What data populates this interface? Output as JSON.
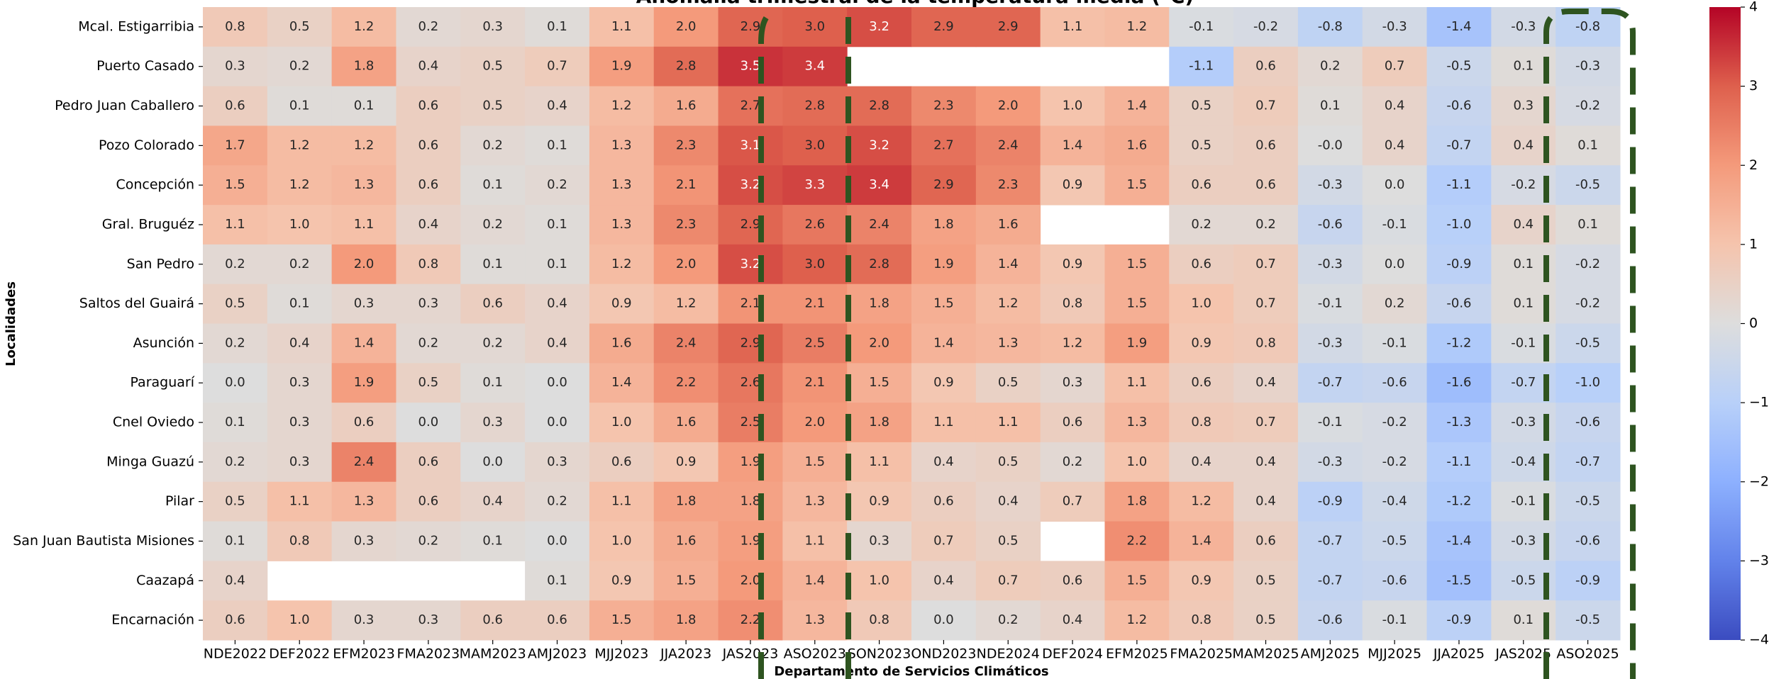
{
  "chart_data": {
    "type": "heatmap",
    "title": "Anomalía trimestral de la temperatura media (°C)",
    "xlabel": "Departamento de Servicios Climáticos",
    "ylabel": "Localidades",
    "colormap": "coolwarm",
    "clim": [
      -4,
      4
    ],
    "cbar_ticks": [
      {
        "value": -4,
        "label": "−4"
      },
      {
        "value": -3,
        "label": "−3"
      },
      {
        "value": -2,
        "label": "−2"
      },
      {
        "value": -1,
        "label": "−1"
      },
      0,
      1,
      2,
      3,
      4
    ],
    "columns": [
      "NDE2022",
      "DEF2022",
      "EFM2023",
      "FMA2023",
      "MAM2023",
      "AMJ2023",
      "MJJ2023",
      "JJA2023",
      "JAS2023",
      "ASO2023",
      "SON2023",
      "OND2023",
      "NDE2024",
      "DEF2024",
      "EFM2025",
      "FMA2025",
      "MAM2025",
      "AMJ2025",
      "MJJ2025",
      "JJA2025",
      "JAS2025",
      "ASO2025"
    ],
    "rows": [
      "Mcal. Estigarribia",
      "Puerto Casado",
      "Pedro Juan Caballero",
      "Pozo Colorado",
      "Concepción",
      "Gral. Bruguéz",
      "San Pedro",
      "Saltos del Guairá",
      "Asunción",
      "Paraguarí",
      "Cnel Oviedo",
      "Minga Guazú",
      "Pilar",
      "San Juan Bautista Misiones",
      "Caazapá",
      "Encarnación"
    ],
    "values": [
      [
        0.8,
        0.5,
        1.2,
        0.2,
        0.3,
        0.1,
        1.1,
        2.0,
        2.9,
        3.0,
        3.2,
        2.9,
        2.9,
        1.1,
        1.2,
        -0.1,
        -0.2,
        -0.8,
        -0.3,
        -1.4,
        -0.3,
        -0.8
      ],
      [
        0.3,
        0.2,
        1.8,
        0.4,
        0.5,
        0.7,
        1.9,
        2.8,
        3.5,
        3.4,
        null,
        null,
        null,
        null,
        null,
        -1.1,
        0.6,
        0.2,
        0.7,
        -0.5,
        0.1,
        -0.3
      ],
      [
        0.6,
        0.1,
        0.1,
        0.6,
        0.5,
        0.4,
        1.2,
        1.6,
        2.7,
        2.8,
        2.8,
        2.3,
        2.0,
        1.0,
        1.4,
        0.5,
        0.7,
        0.1,
        0.4,
        -0.6,
        0.3,
        -0.2
      ],
      [
        1.7,
        1.2,
        1.2,
        0.6,
        0.2,
        0.1,
        1.3,
        2.3,
        3.1,
        3.0,
        3.2,
        2.7,
        2.4,
        1.4,
        1.6,
        0.5,
        0.6,
        -0.0,
        0.4,
        -0.7,
        0.4,
        0.1
      ],
      [
        1.5,
        1.2,
        1.3,
        0.6,
        0.1,
        0.2,
        1.3,
        2.1,
        3.2,
        3.3,
        3.4,
        2.9,
        2.3,
        0.9,
        1.5,
        0.6,
        0.6,
        -0.3,
        0.0,
        -1.1,
        -0.2,
        -0.5
      ],
      [
        1.1,
        1.0,
        1.1,
        0.4,
        0.2,
        0.1,
        1.3,
        2.3,
        2.9,
        2.6,
        2.4,
        1.8,
        1.6,
        null,
        null,
        0.2,
        0.2,
        -0.6,
        -0.1,
        -1.0,
        0.4,
        0.1
      ],
      [
        0.2,
        0.2,
        2.0,
        0.8,
        0.1,
        0.1,
        1.2,
        2.0,
        3.2,
        3.0,
        2.8,
        1.9,
        1.4,
        0.9,
        1.5,
        0.6,
        0.7,
        -0.3,
        0.0,
        -0.9,
        0.1,
        -0.2
      ],
      [
        0.5,
        0.1,
        0.3,
        0.3,
        0.6,
        0.4,
        0.9,
        1.2,
        2.1,
        2.1,
        1.8,
        1.5,
        1.2,
        0.8,
        1.5,
        1.0,
        0.7,
        -0.1,
        0.2,
        -0.6,
        0.1,
        -0.2
      ],
      [
        0.2,
        0.4,
        1.4,
        0.2,
        0.2,
        0.4,
        1.6,
        2.4,
        2.9,
        2.5,
        2.0,
        1.4,
        1.3,
        1.2,
        1.9,
        0.9,
        0.8,
        -0.3,
        -0.1,
        -1.2,
        -0.1,
        -0.5
      ],
      [
        0.0,
        0.3,
        1.9,
        0.5,
        0.1,
        0.0,
        1.4,
        2.2,
        2.6,
        2.1,
        1.5,
        0.9,
        0.5,
        0.3,
        1.1,
        0.6,
        0.4,
        -0.7,
        -0.6,
        -1.6,
        -0.7,
        -1.0
      ],
      [
        0.1,
        0.3,
        0.6,
        0.0,
        0.3,
        0.0,
        1.0,
        1.6,
        2.5,
        2.0,
        1.8,
        1.1,
        1.1,
        0.6,
        1.3,
        0.8,
        0.7,
        -0.1,
        -0.2,
        -1.3,
        -0.3,
        -0.6
      ],
      [
        0.2,
        0.3,
        2.4,
        0.6,
        0.0,
        0.3,
        0.6,
        0.9,
        1.9,
        1.5,
        1.1,
        0.4,
        0.5,
        0.2,
        1.0,
        0.4,
        0.4,
        -0.3,
        -0.2,
        -1.1,
        -0.4,
        -0.7
      ],
      [
        0.5,
        1.1,
        1.3,
        0.6,
        0.4,
        0.2,
        1.1,
        1.8,
        1.8,
        1.3,
        0.9,
        0.6,
        0.4,
        0.7,
        1.8,
        1.2,
        0.4,
        -0.9,
        -0.4,
        -1.2,
        -0.1,
        -0.5
      ],
      [
        0.1,
        0.8,
        0.3,
        0.2,
        0.1,
        0.0,
        1.0,
        1.6,
        1.9,
        1.1,
        0.3,
        0.7,
        0.5,
        null,
        2.2,
        1.4,
        0.6,
        -0.7,
        -0.5,
        -1.4,
        -0.3,
        -0.6
      ],
      [
        0.4,
        null,
        null,
        null,
        null,
        0.1,
        0.9,
        1.5,
        2.0,
        1.4,
        1.0,
        0.4,
        0.7,
        0.6,
        1.5,
        0.9,
        0.5,
        -0.7,
        -0.6,
        -1.5,
        -0.5,
        -0.9
      ],
      [
        0.6,
        1.0,
        0.3,
        0.3,
        0.6,
        0.6,
        1.5,
        1.8,
        2.2,
        1.3,
        0.8,
        0.0,
        0.2,
        0.4,
        1.2,
        0.8,
        0.5,
        -0.6,
        -0.1,
        -0.9,
        0.1,
        -0.5
      ]
    ],
    "value_labels": [
      [
        "0.8",
        "0.5",
        "1.2",
        "0.2",
        "0.3",
        "0.1",
        "1.1",
        "2.0",
        "2.9",
        "3.0",
        "3.2",
        "2.9",
        "2.9",
        "1.1",
        "1.2",
        "-0.1",
        "-0.2",
        "-0.8",
        "-0.3",
        "-1.4",
        "-0.3",
        "-0.8"
      ],
      [
        "0.3",
        "0.2",
        "1.8",
        "0.4",
        "0.5",
        "0.7",
        "1.9",
        "2.8",
        "3.5",
        "3.4",
        null,
        null,
        null,
        null,
        null,
        "-1.1",
        "0.6",
        "0.2",
        "0.7",
        "-0.5",
        "0.1",
        "-0.3"
      ],
      [
        "0.6",
        "0.1",
        "0.1",
        "0.6",
        "0.5",
        "0.4",
        "1.2",
        "1.6",
        "2.7",
        "2.8",
        "2.8",
        "2.3",
        "2.0",
        "1.0",
        "1.4",
        "0.5",
        "0.7",
        "0.1",
        "0.4",
        "-0.6",
        "0.3",
        "-0.2"
      ],
      [
        "1.7",
        "1.2",
        "1.2",
        "0.6",
        "0.2",
        "0.1",
        "1.3",
        "2.3",
        "3.1",
        "3.0",
        "3.2",
        "2.7",
        "2.4",
        "1.4",
        "1.6",
        "0.5",
        "0.6",
        "-0.0",
        "0.4",
        "-0.7",
        "0.4",
        "0.1"
      ],
      [
        "1.5",
        "1.2",
        "1.3",
        "0.6",
        "0.1",
        "0.2",
        "1.3",
        "2.1",
        "3.2",
        "3.3",
        "3.4",
        "2.9",
        "2.3",
        "0.9",
        "1.5",
        "0.6",
        "0.6",
        "-0.3",
        "0.0",
        "-1.1",
        "-0.2",
        "-0.5"
      ],
      [
        "1.1",
        "1.0",
        "1.1",
        "0.4",
        "0.2",
        "0.1",
        "1.3",
        "2.3",
        "2.9",
        "2.6",
        "2.4",
        "1.8",
        "1.6",
        null,
        null,
        "0.2",
        "0.2",
        "-0.6",
        "-0.1",
        "-1.0",
        "0.4",
        "0.1"
      ],
      [
        "0.2",
        "0.2",
        "2.0",
        "0.8",
        "0.1",
        "0.1",
        "1.2",
        "2.0",
        "3.2",
        "3.0",
        "2.8",
        "1.9",
        "1.4",
        "0.9",
        "1.5",
        "0.6",
        "0.7",
        "-0.3",
        "0.0",
        "-0.9",
        "0.1",
        "-0.2"
      ],
      [
        "0.5",
        "0.1",
        "0.3",
        "0.3",
        "0.6",
        "0.4",
        "0.9",
        "1.2",
        "2.1",
        "2.1",
        "1.8",
        "1.5",
        "1.2",
        "0.8",
        "1.5",
        "1.0",
        "0.7",
        "-0.1",
        "0.2",
        "-0.6",
        "0.1",
        "-0.2"
      ],
      [
        "0.2",
        "0.4",
        "1.4",
        "0.2",
        "0.2",
        "0.4",
        "1.6",
        "2.4",
        "2.9",
        "2.5",
        "2.0",
        "1.4",
        "1.3",
        "1.2",
        "1.9",
        "0.9",
        "0.8",
        "-0.3",
        "-0.1",
        "-1.2",
        "-0.1",
        "-0.5"
      ],
      [
        "0.0",
        "0.3",
        "1.9",
        "0.5",
        "0.1",
        "0.0",
        "1.4",
        "2.2",
        "2.6",
        "2.1",
        "1.5",
        "0.9",
        "0.5",
        "0.3",
        "1.1",
        "0.6",
        "0.4",
        "-0.7",
        "-0.6",
        "-1.6",
        "-0.7",
        "-1.0"
      ],
      [
        "0.1",
        "0.3",
        "0.6",
        "0.0",
        "0.3",
        "0.0",
        "1.0",
        "1.6",
        "2.5",
        "2.0",
        "1.8",
        "1.1",
        "1.1",
        "0.6",
        "1.3",
        "0.8",
        "0.7",
        "-0.1",
        "-0.2",
        "-1.3",
        "-0.3",
        "-0.6"
      ],
      [
        "0.2",
        "0.3",
        "2.4",
        "0.6",
        "0.0",
        "0.3",
        "0.6",
        "0.9",
        "1.9",
        "1.5",
        "1.1",
        "0.4",
        "0.5",
        "0.2",
        "1.0",
        "0.4",
        "0.4",
        "-0.3",
        "-0.2",
        "-1.1",
        "-0.4",
        "-0.7"
      ],
      [
        "0.5",
        "1.1",
        "1.3",
        "0.6",
        "0.4",
        "0.2",
        "1.1",
        "1.8",
        "1.8",
        "1.3",
        "0.9",
        "0.6",
        "0.4",
        "0.7",
        "1.8",
        "1.2",
        "0.4",
        "-0.9",
        "-0.4",
        "-1.2",
        "-0.1",
        "-0.5"
      ],
      [
        "0.1",
        "0.8",
        "0.3",
        "0.2",
        "0.1",
        "0.0",
        "1.0",
        "1.6",
        "1.9",
        "1.1",
        "0.3",
        "0.7",
        "0.5",
        null,
        "2.2",
        "1.4",
        "0.6",
        "-0.7",
        "-0.5",
        "-1.4",
        "-0.3",
        "-0.6"
      ],
      [
        "0.4",
        null,
        null,
        null,
        null,
        "0.1",
        "0.9",
        "1.5",
        "2.0",
        "1.4",
        "1.0",
        "0.4",
        "0.7",
        "0.6",
        "1.5",
        "0.9",
        "0.5",
        "-0.7",
        "-0.6",
        "-1.5",
        "-0.5",
        "-0.9"
      ],
      [
        "0.6",
        "1.0",
        "0.3",
        "0.3",
        "0.6",
        "0.6",
        "1.5",
        "1.8",
        "2.2",
        "1.3",
        "0.8",
        "0.0",
        "0.2",
        "0.4",
        "1.2",
        "0.8",
        "0.5",
        "-0.6",
        "-0.1",
        "-0.9",
        "0.1",
        "-0.5"
      ]
    ]
  }
}
